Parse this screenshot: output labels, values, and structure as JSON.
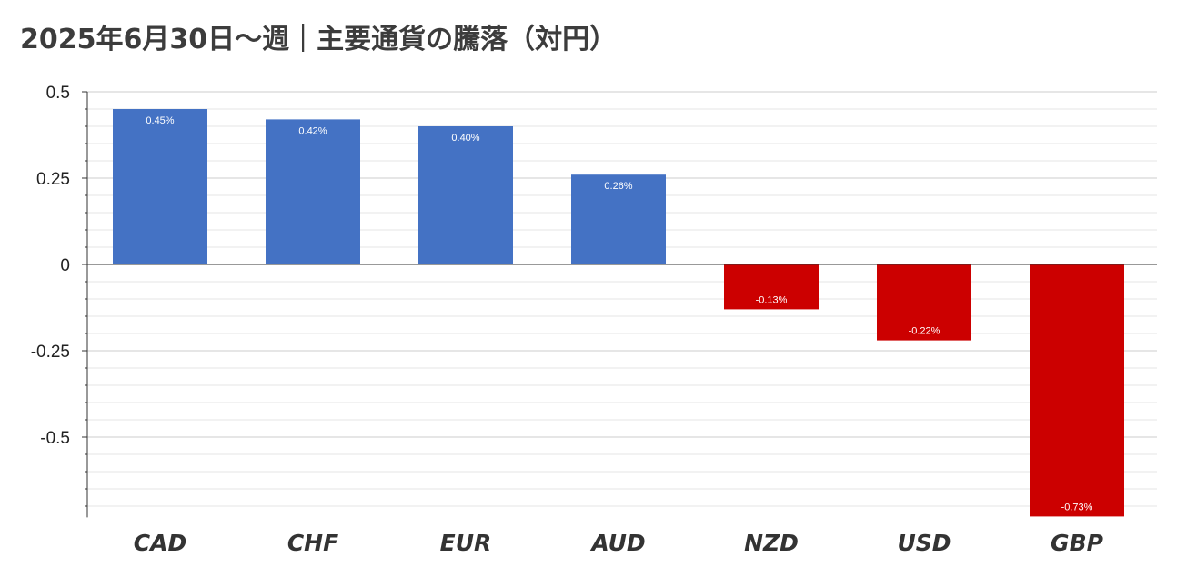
{
  "chart_data": {
    "type": "bar",
    "title": "2025年6月30日～週｜主要通貨の騰落（対円）",
    "xlabel": "",
    "ylabel": "",
    "categories": [
      "CAD",
      "CHF",
      "EUR",
      "AUD",
      "NZD",
      "USD",
      "GBP"
    ],
    "series": [
      {
        "values": [
          0.45,
          0.42,
          0.4,
          0.26,
          -0.13,
          -0.22,
          -0.73
        ],
        "labels": [
          "0.45%",
          "0.42%",
          "0.40%",
          "0.26%",
          "-0.13%",
          "-0.22%",
          "-0.73%"
        ]
      }
    ],
    "ylim": [
      -0.73,
      0.5
    ],
    "yticks": [
      0.5,
      0.25,
      0,
      -0.25,
      -0.5
    ],
    "ytick_labels": [
      "0.5",
      "0.25",
      "0",
      "-0.25",
      "-0.5"
    ],
    "grid": true,
    "legend": "none",
    "colors": {
      "positive": "#4472c4",
      "negative": "#cc0000",
      "major_grid": "#cccccc",
      "minor_grid": "#e6e6e6",
      "axis": "#333333"
    }
  }
}
